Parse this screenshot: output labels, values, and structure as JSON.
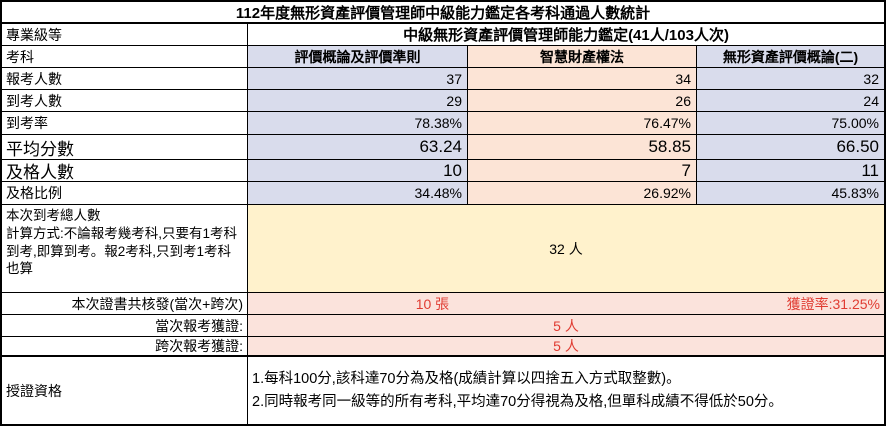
{
  "title": "112年度無形資產評價管理師中級能力鑑定各考科通過人數統計",
  "level": {
    "label": "專業級等",
    "value": "中級無形資產評價管理師能力鑑定(41人/103人次)"
  },
  "subjects": {
    "label": "考科",
    "cols": [
      "評價概論及評價準則",
      "智慧財產權法",
      "無形資產評價概論(二)"
    ]
  },
  "metrics": [
    {
      "label": "報考人數",
      "values": [
        "37",
        "34",
        "32"
      ]
    },
    {
      "label": "到考人數",
      "values": [
        "29",
        "26",
        "24"
      ]
    },
    {
      "label": "到考率",
      "values": [
        "78.38%",
        "76.47%",
        "75.00%"
      ]
    },
    {
      "label": "平均分數",
      "values": [
        "63.24",
        "58.85",
        "66.50"
      ]
    },
    {
      "label": "及格人數",
      "values": [
        "10",
        "7",
        "11"
      ]
    },
    {
      "label": "及格比例",
      "values": [
        "34.48%",
        "26.92%",
        "45.83%"
      ]
    }
  ],
  "attendance": {
    "label_line1": "本次到考總人數",
    "label_rest": "計算方式:不論報考幾考科,只要有1考科到考,即算到考。報2考科,只到考1考科也算",
    "value": "32 人"
  },
  "certificates": {
    "issued": {
      "label": "本次證書共核發(當次+跨次)",
      "count": "10 張",
      "rate": "獲證率:31.25%"
    },
    "current": {
      "label": "當次報考獲證:",
      "value": "5 人"
    },
    "cross": {
      "label": "跨次報考獲證:",
      "value": "5 人"
    }
  },
  "qualification": {
    "label": "授證資格",
    "line1": "1.每科100分,該科達70分為及格(成績計算以四捨五入方式取整數)。",
    "line2": "2.同時報考同一級等的所有考科,平均達70分得視為及格,但單科成績不得低於50分。"
  },
  "colors": {
    "lavender": "#D9DCEC",
    "peach": "#FCE4D6",
    "yellow": "#FFF2CC",
    "pink": "#FBE3DC",
    "red": "#E03C32"
  }
}
